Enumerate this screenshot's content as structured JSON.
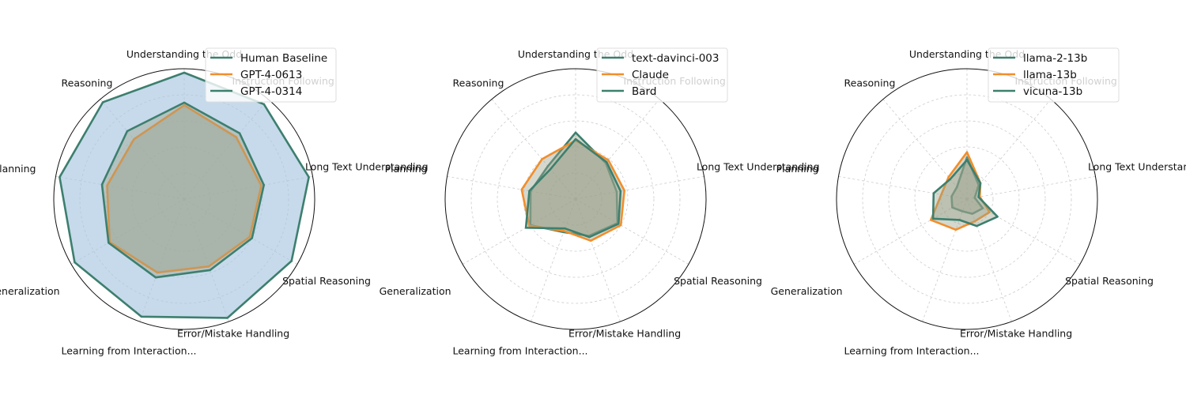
{
  "chart_data": [
    {
      "type": "radar",
      "axes": [
        "Understanding the Odd",
        "Instruction Following",
        "Long Text Understanding",
        "Spatial Reasoning",
        "Error/Mistake Handling",
        "Learning from Interaction...",
        "Generalization",
        "Planning",
        "Reasoning"
      ],
      "rlim": [
        0,
        1
      ],
      "grid": true,
      "legend_position": "top-right",
      "series": [
        {
          "name": "Human Baseline",
          "color": "#3d7f6e",
          "fill": "#a7c6e0",
          "values": [
            0.97,
            0.95,
            0.97,
            0.95,
            0.97,
            0.96,
            0.97,
            0.97,
            0.97
          ]
        },
        {
          "name": "GPT-4-0613",
          "color": "#f28e2b",
          "fill": "#9aa18a",
          "values": [
            0.72,
            0.62,
            0.6,
            0.58,
            0.55,
            0.6,
            0.66,
            0.6,
            0.6
          ]
        },
        {
          "name": "GPT-4-0314",
          "color": "#3d7f6e",
          "fill": "#9aa18a",
          "values": [
            0.74,
            0.66,
            0.62,
            0.6,
            0.58,
            0.64,
            0.67,
            0.64,
            0.68
          ]
        }
      ]
    },
    {
      "type": "radar",
      "axes": [
        "Understanding the Odd",
        "Instruction Following",
        "Long Text Understanding",
        "Spatial Reasoning",
        "Error/Mistake Handling",
        "Learning from Interaction...",
        "Generalization",
        "Planning",
        "Reasoning"
      ],
      "rlim": [
        0,
        1
      ],
      "grid": true,
      "legend_position": "top-right",
      "series": [
        {
          "name": "text-davinci-003",
          "color": "#3d7f6e",
          "fill": "#9aa18a",
          "values": [
            0.51,
            0.36,
            0.32,
            0.37,
            0.3,
            0.27,
            0.4,
            0.35,
            0.33
          ]
        },
        {
          "name": "Claude",
          "color": "#f28e2b",
          "fill": "#9aa18a",
          "values": [
            0.45,
            0.39,
            0.38,
            0.4,
            0.34,
            0.26,
            0.41,
            0.42,
            0.4
          ]
        },
        {
          "name": "Bard",
          "color": "#3d7f6e",
          "fill": "#9aa18a",
          "values": [
            0.46,
            0.37,
            0.35,
            0.38,
            0.31,
            0.24,
            0.44,
            0.36,
            0.3
          ]
        }
      ]
    },
    {
      "type": "radar",
      "axes": [
        "Understanding the Odd",
        "Instruction Following",
        "Long Text Understanding",
        "Spatial Reasoning",
        "Error/Mistake Handling",
        "Learning from Interaction...",
        "Generalization",
        "Planning",
        "Reasoning"
      ],
      "rlim": [
        0,
        1
      ],
      "grid": true,
      "legend_position": "top-right",
      "series": [
        {
          "name": "llama-2-13b",
          "color": "#3d7f6e",
          "fill": "#9aa18a",
          "values": [
            0.32,
            0.14,
            0.06,
            0.14,
            0.12,
            0.1,
            0.13,
            0.12,
            0.12
          ]
        },
        {
          "name": "llama-13b",
          "color": "#f28e2b",
          "fill": "#9aa18a",
          "values": [
            0.36,
            0.16,
            0.1,
            0.2,
            0.18,
            0.25,
            0.32,
            0.2,
            0.22
          ]
        },
        {
          "name": "vicuna-13b",
          "color": "#3d7f6e",
          "fill": "#9aa18a",
          "values": [
            0.3,
            0.16,
            0.09,
            0.27,
            0.22,
            0.17,
            0.3,
            0.26,
            0.2
          ]
        }
      ]
    }
  ]
}
